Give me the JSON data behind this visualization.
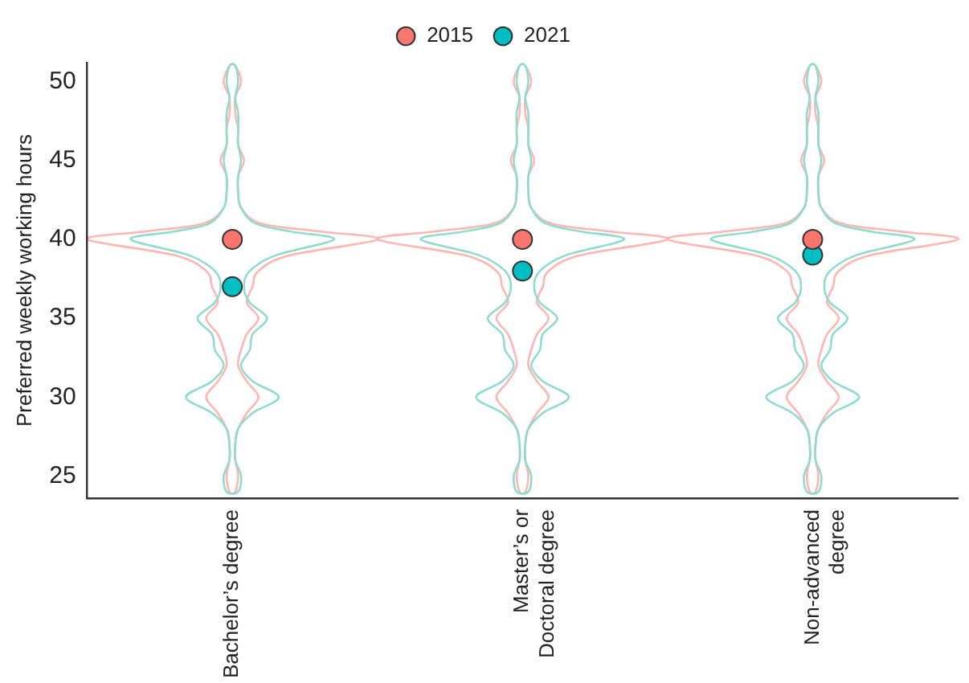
{
  "chart_data": {
    "type": "scatter",
    "ylabel": "Preferred weekly working hours",
    "categories": [
      "Bachelor’s degree",
      "Master’s or Doctoral degree",
      "Non-advanced degree"
    ],
    "series": [
      {
        "name": "2015",
        "color": "#f8766d",
        "values": [
          40,
          40,
          40
        ]
      },
      {
        "name": "2021",
        "color": "#00bfc4",
        "values": [
          37,
          38,
          39
        ]
      }
    ],
    "ylim": [
      23.6,
      51.2
    ],
    "yticks": [
      25,
      30,
      35,
      40,
      45,
      50
    ],
    "grid": false,
    "legend": "top",
    "marker": "circle"
  }
}
